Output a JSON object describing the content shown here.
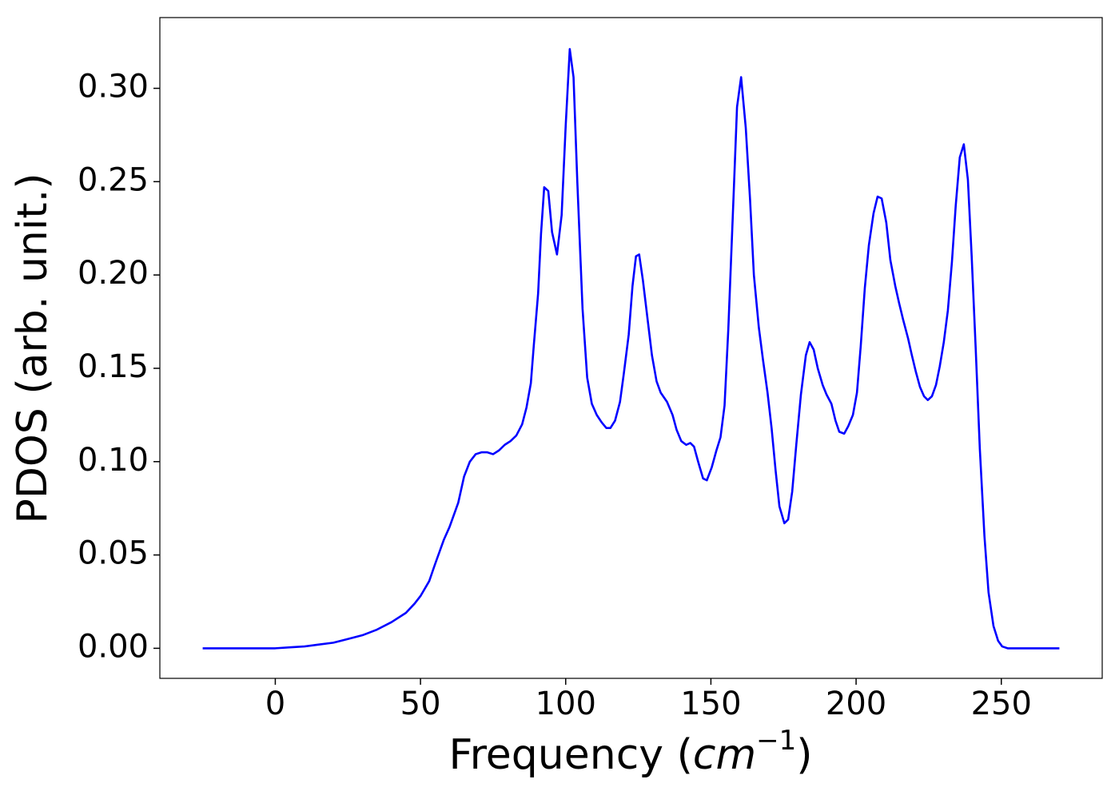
{
  "chart_data": {
    "type": "line",
    "xlabel_parts": [
      "Frequency (",
      "cm",
      "−1",
      ")"
    ],
    "ylabel": "PDOS (arb. unit.)",
    "xlim": [
      -39.75,
      284.75
    ],
    "ylim": [
      -0.0161,
      0.3379
    ],
    "xticks": [
      0,
      50,
      100,
      150,
      200,
      250
    ],
    "yticks": [
      {
        "value": 0,
        "label": "0.00"
      },
      {
        "value": 0.05,
        "label": "0.05"
      },
      {
        "value": 0.1,
        "label": "0.10"
      },
      {
        "value": 0.15,
        "label": "0.15"
      },
      {
        "value": 0.2,
        "label": "0.20"
      },
      {
        "value": 0.25,
        "label": "0.25"
      },
      {
        "value": 0.3,
        "label": "0.30"
      }
    ],
    "x": [
      -25,
      0,
      5,
      10,
      15,
      20,
      25,
      30,
      35,
      40,
      45,
      48,
      50,
      53,
      55,
      58,
      60,
      63,
      65,
      67,
      69,
      71,
      73,
      75,
      77,
      79,
      81,
      83,
      85,
      86.5,
      88,
      89,
      90.5,
      91.5,
      92.6,
      94,
      95.3,
      97,
      98.6,
      100,
      101.4,
      102.7,
      104,
      105.8,
      107.4,
      109,
      110.7,
      112.4,
      114,
      115.4,
      117,
      118.7,
      120,
      121.7,
      123,
      124.2,
      125.3,
      126.6,
      128.3,
      129.7,
      131.3,
      132.7,
      134.9,
      136.8,
      138.2,
      139.8,
      141.5,
      142.9,
      144.2,
      145.6,
      147.3,
      148.6,
      150.3,
      151.9,
      153.3,
      154.7,
      156,
      157.7,
      159,
      160.4,
      162,
      163.5,
      164.8,
      166.5,
      167.9,
      169.5,
      170.9,
      172.3,
      173.6,
      175.3,
      176.6,
      178,
      179.4,
      181,
      182.7,
      184,
      185.4,
      186.8,
      188.5,
      189.8,
      191.5,
      192.9,
      194.2,
      195.9,
      197.3,
      198.9,
      200.3,
      201.6,
      203,
      204.4,
      206,
      207.4,
      208.8,
      210.4,
      211.8,
      213.5,
      214.8,
      216.2,
      217.9,
      219.2,
      220.6,
      222,
      223.4,
      224.7,
      226.1,
      227.5,
      228.8,
      230.2,
      231.6,
      233,
      234.3,
      235.7,
      237.1,
      238.5,
      239.8,
      241.2,
      242.6,
      244.2,
      245.6,
      247.3,
      248.9,
      250.3,
      252.2,
      270
    ],
    "series": [
      {
        "color": "#0000ff",
        "values": [
          0,
          0,
          0.0005,
          0.001,
          0.002,
          0.003,
          0.005,
          0.007,
          0.01,
          0.014,
          0.019,
          0.024,
          0.028,
          0.036,
          0.045,
          0.058,
          0.065,
          0.078,
          0.092,
          0.1,
          0.104,
          0.105,
          0.105,
          0.104,
          0.106,
          0.109,
          0.111,
          0.114,
          0.12,
          0.129,
          0.142,
          0.162,
          0.19,
          0.222,
          0.247,
          0.245,
          0.223,
          0.211,
          0.232,
          0.28,
          0.321,
          0.306,
          0.25,
          0.182,
          0.145,
          0.131,
          0.125,
          0.121,
          0.118,
          0.118,
          0.122,
          0.132,
          0.147,
          0.168,
          0.194,
          0.21,
          0.211,
          0.197,
          0.175,
          0.157,
          0.143,
          0.137,
          0.132,
          0.125,
          0.117,
          0.111,
          0.109,
          0.11,
          0.108,
          0.1,
          0.091,
          0.09,
          0.097,
          0.106,
          0.113,
          0.13,
          0.171,
          0.238,
          0.29,
          0.306,
          0.279,
          0.24,
          0.2,
          0.172,
          0.155,
          0.137,
          0.118,
          0.095,
          0.076,
          0.067,
          0.069,
          0.084,
          0.109,
          0.136,
          0.157,
          0.164,
          0.16,
          0.15,
          0.141,
          0.136,
          0.131,
          0.122,
          0.116,
          0.115,
          0.119,
          0.125,
          0.137,
          0.162,
          0.193,
          0.216,
          0.233,
          0.242,
          0.241,
          0.228,
          0.208,
          0.194,
          0.185,
          0.176,
          0.166,
          0.157,
          0.148,
          0.14,
          0.135,
          0.133,
          0.135,
          0.141,
          0.151,
          0.164,
          0.181,
          0.207,
          0.237,
          0.263,
          0.27,
          0.251,
          0.21,
          0.16,
          0.107,
          0.06,
          0.03,
          0.012,
          0.004,
          0.001,
          0,
          0
        ]
      }
    ]
  }
}
